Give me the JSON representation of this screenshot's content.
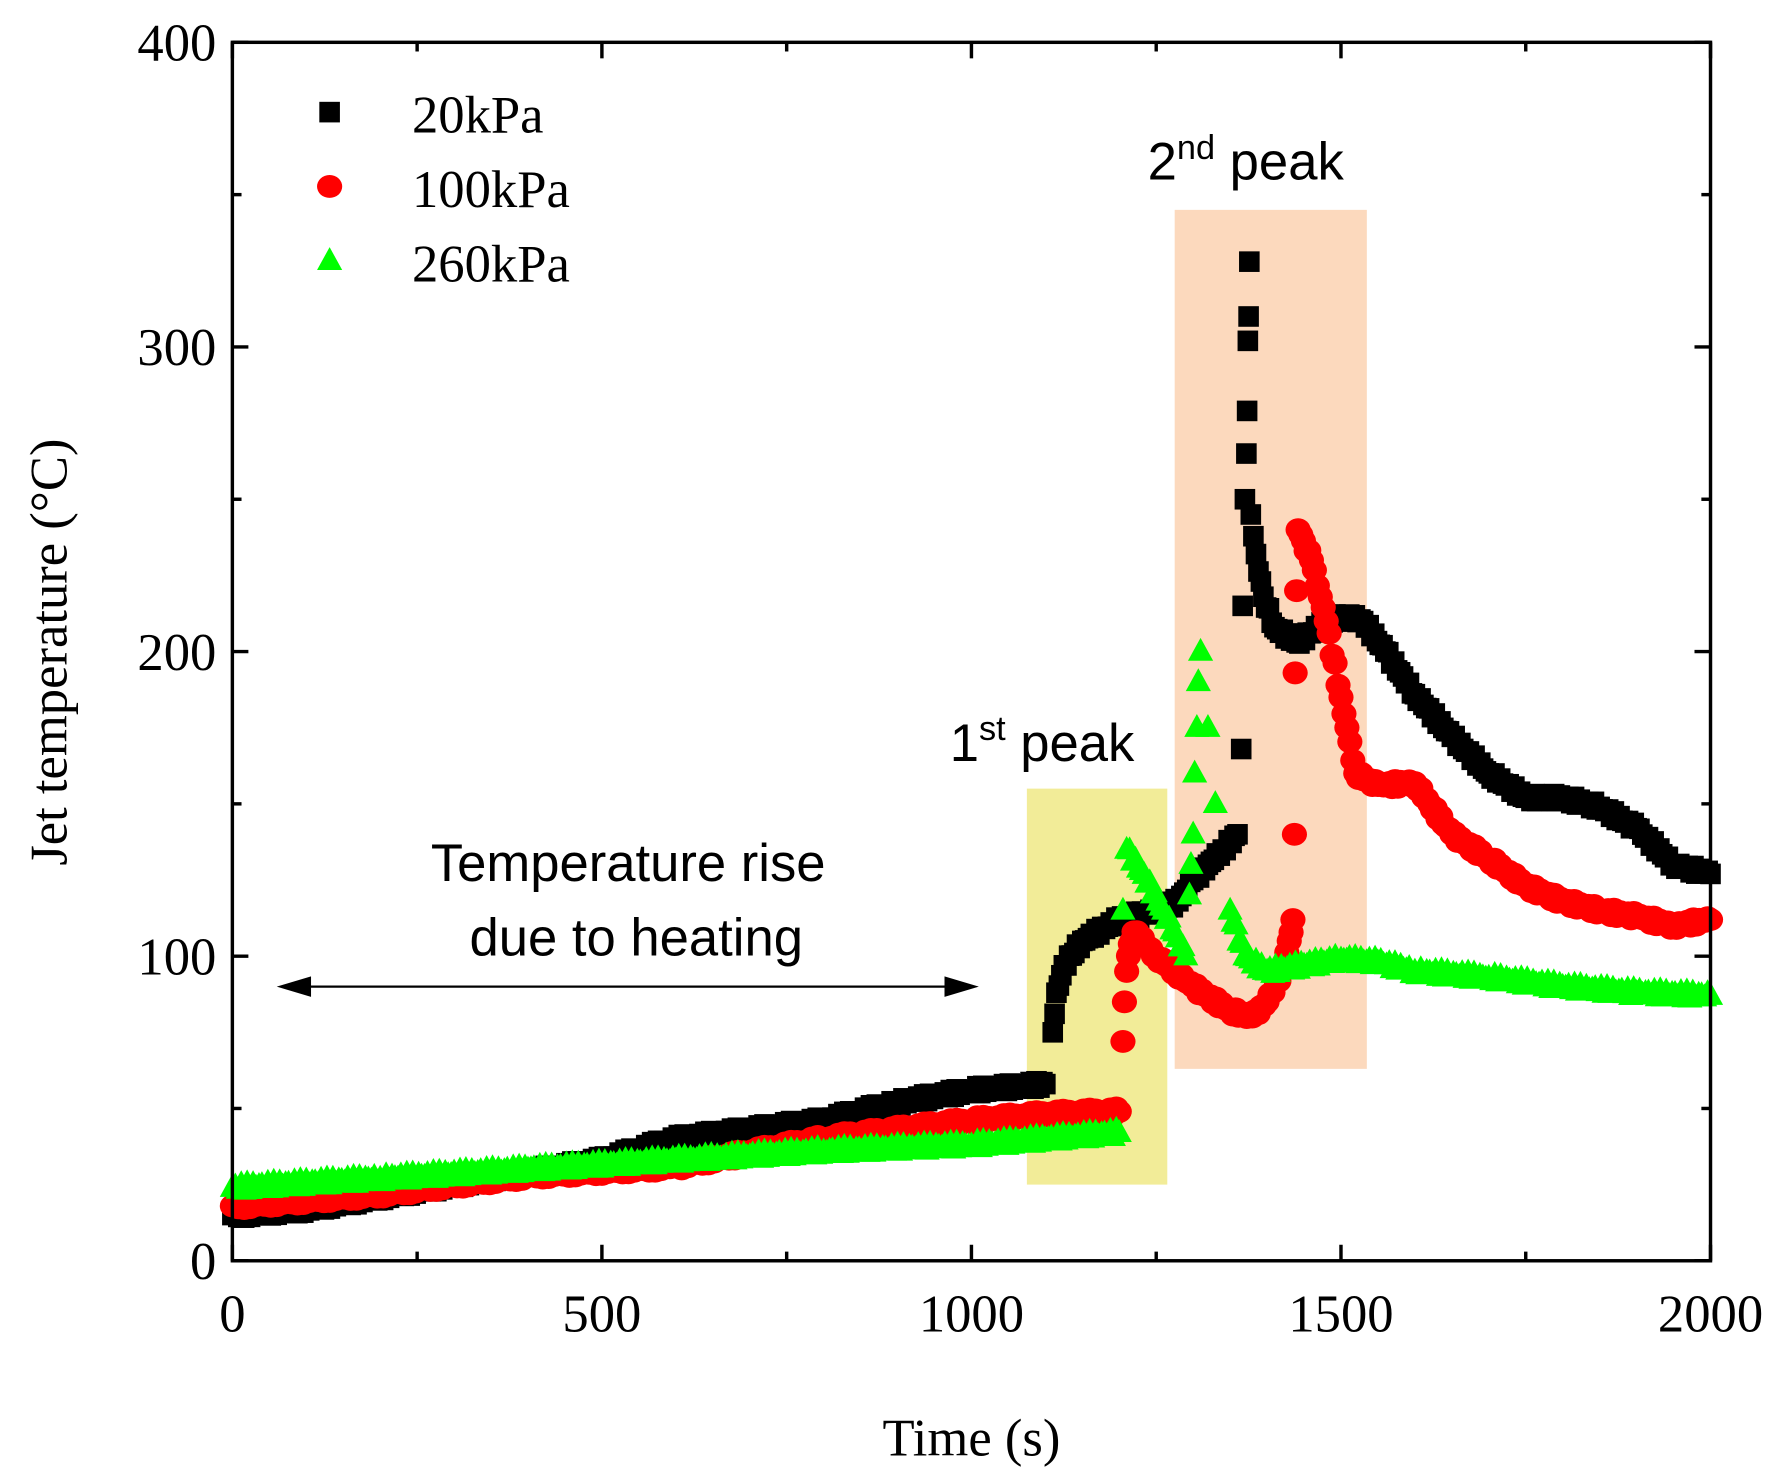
{
  "chart_data": {
    "type": "scatter",
    "title": "",
    "xlabel": "Time (s)",
    "ylabel": "Jet temperature (°C)",
    "xlim": [
      0,
      2000
    ],
    "ylim": [
      0,
      400
    ],
    "xticks": [
      "0",
      "500",
      "1000",
      "1500",
      "2000"
    ],
    "yticks": [
      "0",
      "100",
      "200",
      "300",
      "400"
    ],
    "grid": false,
    "legend_position": "top-left",
    "series": [
      {
        "name": "20kPa",
        "marker": "square",
        "color": "#000000",
        "points": [
          [
            0,
            15
          ],
          [
            100,
            17
          ],
          [
            200,
            21
          ],
          [
            300,
            25
          ],
          [
            400,
            29
          ],
          [
            500,
            33
          ],
          [
            600,
            40
          ],
          [
            700,
            43
          ],
          [
            800,
            46
          ],
          [
            900,
            52
          ],
          [
            1000,
            56
          ],
          [
            1100,
            58
          ],
          [
            1110,
            75
          ],
          [
            1115,
            88
          ],
          [
            1125,
            97
          ],
          [
            1150,
            105
          ],
          [
            1200,
            112
          ],
          [
            1250,
            115
          ],
          [
            1280,
            118
          ],
          [
            1300,
            125
          ],
          [
            1320,
            130
          ],
          [
            1340,
            135
          ],
          [
            1360,
            140
          ],
          [
            1365,
            168
          ],
          [
            1367,
            215
          ],
          [
            1370,
            250
          ],
          [
            1372,
            265
          ],
          [
            1373,
            279
          ],
          [
            1374,
            302
          ],
          [
            1375,
            310
          ],
          [
            1376,
            328
          ],
          [
            1378,
            245
          ],
          [
            1385,
            232
          ],
          [
            1395,
            218
          ],
          [
            1410,
            208
          ],
          [
            1440,
            203
          ],
          [
            1470,
            208
          ],
          [
            1500,
            212
          ],
          [
            1530,
            210
          ],
          [
            1560,
            200
          ],
          [
            1600,
            186
          ],
          [
            1650,
            172
          ],
          [
            1700,
            160
          ],
          [
            1750,
            152
          ],
          [
            1800,
            152
          ],
          [
            1850,
            149
          ],
          [
            1900,
            142
          ],
          [
            1950,
            130
          ],
          [
            2000,
            127
          ]
        ]
      },
      {
        "name": "100kPa",
        "marker": "circle",
        "color": "#ff0000",
        "points": [
          [
            0,
            18
          ],
          [
            200,
            22
          ],
          [
            400,
            28
          ],
          [
            600,
            31
          ],
          [
            800,
            40
          ],
          [
            1000,
            46
          ],
          [
            1100,
            48
          ],
          [
            1200,
            49
          ],
          [
            1205,
            72
          ],
          [
            1207,
            85
          ],
          [
            1210,
            95
          ],
          [
            1215,
            104
          ],
          [
            1220,
            108
          ],
          [
            1250,
            100
          ],
          [
            1300,
            90
          ],
          [
            1350,
            82
          ],
          [
            1380,
            80
          ],
          [
            1400,
            85
          ],
          [
            1420,
            95
          ],
          [
            1430,
            105
          ],
          [
            1435,
            112
          ],
          [
            1437,
            140
          ],
          [
            1438,
            193
          ],
          [
            1440,
            220
          ],
          [
            1442,
            240
          ],
          [
            1460,
            230
          ],
          [
            1480,
            210
          ],
          [
            1500,
            185
          ],
          [
            1520,
            160
          ],
          [
            1550,
            156
          ],
          [
            1600,
            157
          ],
          [
            1620,
            150
          ],
          [
            1650,
            140
          ],
          [
            1700,
            132
          ],
          [
            1750,
            123
          ],
          [
            1800,
            118
          ],
          [
            1850,
            115
          ],
          [
            1900,
            113
          ],
          [
            1950,
            110
          ],
          [
            2000,
            112
          ]
        ]
      },
      {
        "name": "260kPa",
        "marker": "triangle",
        "color": "#00ff00",
        "points": [
          [
            0,
            24
          ],
          [
            200,
            27
          ],
          [
            400,
            30
          ],
          [
            600,
            33
          ],
          [
            800,
            36
          ],
          [
            1000,
            38
          ],
          [
            1100,
            40
          ],
          [
            1200,
            42
          ],
          [
            1205,
            115
          ],
          [
            1210,
            135
          ],
          [
            1230,
            128
          ],
          [
            1260,
            115
          ],
          [
            1290,
            100
          ],
          [
            1295,
            120
          ],
          [
            1297,
            130
          ],
          [
            1300,
            140
          ],
          [
            1302,
            160
          ],
          [
            1305,
            175
          ],
          [
            1307,
            190
          ],
          [
            1310,
            200
          ],
          [
            1320,
            175
          ],
          [
            1330,
            150
          ],
          [
            1350,
            115
          ],
          [
            1370,
            100
          ],
          [
            1400,
            95
          ],
          [
            1450,
            97
          ],
          [
            1500,
            99
          ],
          [
            1550,
            98
          ],
          [
            1600,
            95
          ],
          [
            1700,
            93
          ],
          [
            1800,
            90
          ],
          [
            1900,
            88
          ],
          [
            2000,
            87
          ]
        ]
      }
    ],
    "annotations": {
      "heating_text_line1": "Temperature rise",
      "heating_text_line2": "due to heating",
      "first_peak": "1",
      "first_peak_sup": "st",
      "first_peak_word": " peak",
      "second_peak": "2",
      "second_peak_sup": "nd",
      "second_peak_word": " peak",
      "first_peak_region": {
        "x": [
          1075,
          1265
        ],
        "y": [
          25,
          155
        ],
        "color": "#f2ec98"
      },
      "second_peak_region": {
        "x": [
          1275,
          1535
        ],
        "y": [
          63,
          345
        ],
        "color": "#fcd9bd"
      },
      "arrow_range": {
        "x": [
          60,
          1010
        ],
        "y": 90
      }
    }
  }
}
